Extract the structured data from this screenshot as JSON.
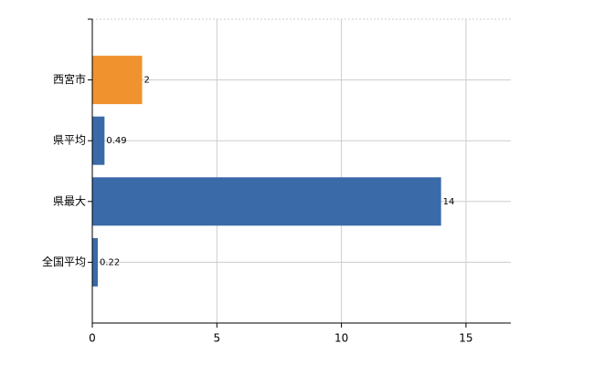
{
  "chart_data": {
    "type": "bar",
    "orientation": "horizontal",
    "categories": [
      "西宮市",
      "県平均",
      "県最大",
      "全国平均"
    ],
    "values": [
      2,
      0.49,
      14,
      0.22
    ],
    "colors": [
      "#f0922e",
      "#3a6aa8",
      "#3a6aa8",
      "#3a6aa8"
    ],
    "xlim": [
      0,
      16.8
    ],
    "xticks": [
      0,
      5,
      10,
      15
    ],
    "grid": true
  }
}
